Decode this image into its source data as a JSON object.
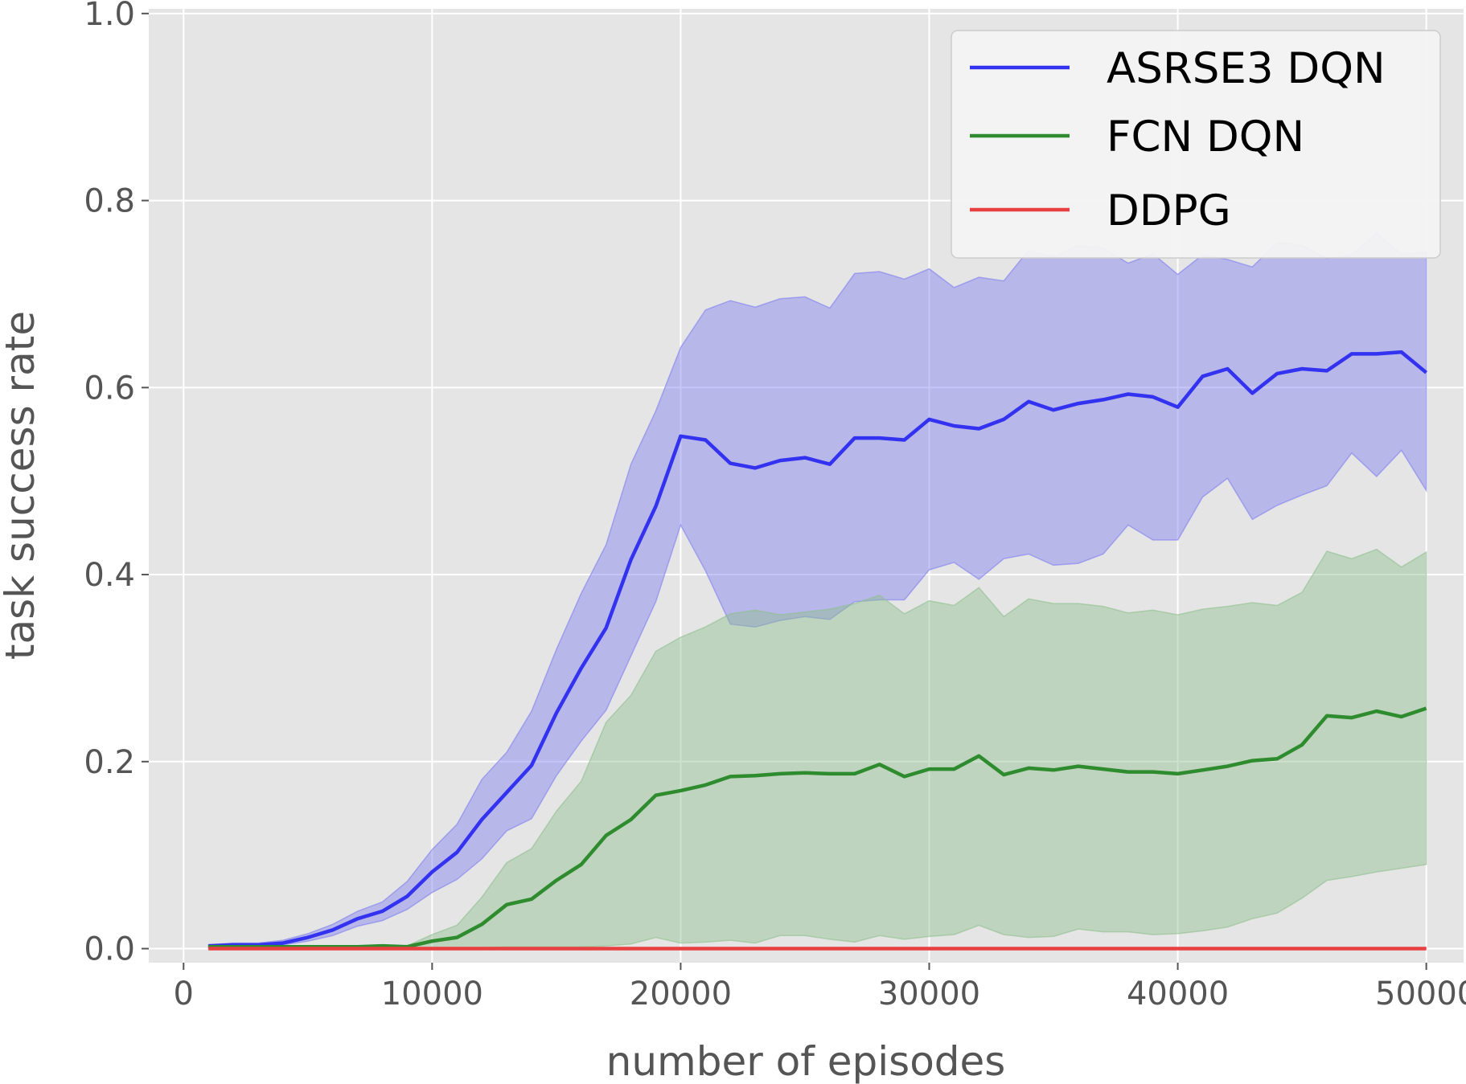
{
  "chart_data": {
    "type": "line",
    "xlabel": "number of episodes",
    "ylabel": "task success rate",
    "xlim": [
      -1400,
      51500
    ],
    "ylim": [
      -0.015,
      1.005
    ],
    "xticks": [
      0,
      10000,
      20000,
      30000,
      40000,
      50000
    ],
    "xtick_labels": [
      "0",
      "10000",
      "20000",
      "30000",
      "40000",
      "50000"
    ],
    "yticks": [
      0.0,
      0.2,
      0.4,
      0.6,
      0.8,
      1.0
    ],
    "ytick_labels": [
      "0.0",
      "0.2",
      "0.4",
      "0.6",
      "0.8",
      "1.0"
    ],
    "grid": true,
    "legend_position": "top-right",
    "x": [
      1000,
      2000,
      3000,
      4000,
      5000,
      6000,
      7000,
      8000,
      9000,
      10000,
      11000,
      12000,
      13000,
      14000,
      15000,
      16000,
      17000,
      18000,
      19000,
      20000,
      21000,
      22000,
      23000,
      24000,
      25000,
      26000,
      27000,
      28000,
      29000,
      30000,
      31000,
      32000,
      33000,
      34000,
      35000,
      36000,
      37000,
      38000,
      39000,
      40000,
      41000,
      42000,
      43000,
      44000,
      45000,
      46000,
      47000,
      48000,
      49000,
      50000
    ],
    "series": [
      {
        "name": "ASRSE3 DQN",
        "color": "#3232f0",
        "band_color": "#7f7ff0",
        "values": [
          0.003,
          0.004,
          0.004,
          0.006,
          0.012,
          0.02,
          0.032,
          0.04,
          0.056,
          0.082,
          0.103,
          0.138,
          0.167,
          0.196,
          0.252,
          0.3,
          0.343,
          0.416,
          0.473,
          0.548,
          0.544,
          0.519,
          0.514,
          0.522,
          0.525,
          0.518,
          0.546,
          0.546,
          0.544,
          0.566,
          0.559,
          0.556,
          0.566,
          0.585,
          0.576,
          0.583,
          0.587,
          0.593,
          0.59,
          0.579,
          0.612,
          0.62,
          0.594,
          0.615,
          0.62,
          0.618,
          0.636,
          0.636,
          0.638,
          0.616
        ],
        "upper": [
          0.004,
          0.006,
          0.006,
          0.009,
          0.016,
          0.026,
          0.04,
          0.05,
          0.072,
          0.106,
          0.133,
          0.181,
          0.21,
          0.254,
          0.32,
          0.38,
          0.432,
          0.518,
          0.575,
          0.643,
          0.683,
          0.693,
          0.686,
          0.695,
          0.697,
          0.685,
          0.722,
          0.724,
          0.716,
          0.727,
          0.707,
          0.718,
          0.714,
          0.747,
          0.74,
          0.752,
          0.749,
          0.733,
          0.743,
          0.721,
          0.742,
          0.737,
          0.729,
          0.755,
          0.752,
          0.738,
          0.742,
          0.765,
          0.743,
          0.745
        ],
        "lower": [
          0.002,
          0.003,
          0.003,
          0.004,
          0.008,
          0.014,
          0.024,
          0.03,
          0.042,
          0.06,
          0.074,
          0.096,
          0.126,
          0.139,
          0.185,
          0.222,
          0.255,
          0.313,
          0.371,
          0.453,
          0.404,
          0.347,
          0.344,
          0.351,
          0.355,
          0.352,
          0.371,
          0.373,
          0.373,
          0.405,
          0.413,
          0.395,
          0.417,
          0.422,
          0.41,
          0.412,
          0.422,
          0.453,
          0.437,
          0.437,
          0.483,
          0.503,
          0.459,
          0.474,
          0.485,
          0.495,
          0.53,
          0.505,
          0.533,
          0.49
        ]
      },
      {
        "name": "FCN DQN",
        "color": "#2e8b2e",
        "band_color": "#8fbf8f",
        "values": [
          0.002,
          0.002,
          0.002,
          0.002,
          0.002,
          0.002,
          0.002,
          0.003,
          0.002,
          0.008,
          0.012,
          0.026,
          0.047,
          0.053,
          0.073,
          0.09,
          0.121,
          0.138,
          0.164,
          0.169,
          0.175,
          0.184,
          0.185,
          0.187,
          0.188,
          0.187,
          0.187,
          0.197,
          0.184,
          0.192,
          0.192,
          0.206,
          0.186,
          0.193,
          0.191,
          0.195,
          0.192,
          0.189,
          0.189,
          0.187,
          0.191,
          0.195,
          0.201,
          0.203,
          0.218,
          0.249,
          0.247,
          0.254,
          0.248,
          0.257
        ],
        "upper": [
          0.003,
          0.003,
          0.003,
          0.003,
          0.003,
          0.003,
          0.003,
          0.004,
          0.003,
          0.015,
          0.025,
          0.055,
          0.092,
          0.107,
          0.147,
          0.179,
          0.242,
          0.271,
          0.318,
          0.333,
          0.344,
          0.358,
          0.362,
          0.357,
          0.36,
          0.363,
          0.369,
          0.378,
          0.358,
          0.372,
          0.367,
          0.386,
          0.355,
          0.374,
          0.369,
          0.369,
          0.366,
          0.359,
          0.362,
          0.357,
          0.363,
          0.366,
          0.37,
          0.367,
          0.381,
          0.425,
          0.417,
          0.427,
          0.408,
          0.424
        ],
        "lower": [
          0.001,
          0.001,
          0.001,
          0.001,
          0.001,
          0.001,
          0.001,
          0.001,
          0.001,
          0.001,
          0.001,
          0.001,
          0.002,
          0.002,
          0.002,
          0.002,
          0.003,
          0.005,
          0.012,
          0.006,
          0.007,
          0.009,
          0.006,
          0.014,
          0.014,
          0.01,
          0.007,
          0.014,
          0.01,
          0.013,
          0.015,
          0.025,
          0.015,
          0.012,
          0.013,
          0.021,
          0.018,
          0.018,
          0.015,
          0.016,
          0.019,
          0.023,
          0.032,
          0.038,
          0.054,
          0.073,
          0.077,
          0.082,
          0.086,
          0.09
        ]
      },
      {
        "name": "DDPG",
        "color": "#e84040",
        "band_color": "#f0a0a0",
        "values": [
          0,
          0,
          0,
          0,
          0,
          0,
          0,
          0,
          0,
          0,
          0,
          0,
          0,
          0,
          0,
          0,
          0,
          0,
          0,
          0,
          0,
          0,
          0,
          0,
          0,
          0,
          0,
          0,
          0,
          0,
          0,
          0,
          0,
          0,
          0,
          0,
          0,
          0,
          0,
          0,
          0,
          0,
          0,
          0,
          0,
          0,
          0,
          0,
          0,
          0
        ],
        "upper": [
          0.001,
          0.001,
          0.001,
          0.001,
          0.001,
          0.001,
          0.001,
          0.001,
          0.001,
          0.001,
          0.001,
          0.001,
          0.001,
          0.001,
          0.001,
          0.001,
          0.001,
          0.001,
          0.001,
          0.001,
          0.001,
          0.001,
          0.001,
          0.001,
          0.001,
          0.001,
          0.001,
          0.001,
          0.001,
          0.001,
          0.001,
          0.001,
          0.001,
          0.001,
          0.001,
          0.001,
          0.001,
          0.001,
          0.001,
          0.001,
          0.001,
          0.001,
          0.001,
          0.001,
          0.001,
          0.001,
          0.001,
          0.001,
          0.001,
          0.001
        ],
        "lower": [
          0,
          0,
          0,
          0,
          0,
          0,
          0,
          0,
          0,
          0,
          0,
          0,
          0,
          0,
          0,
          0,
          0,
          0,
          0,
          0,
          0,
          0,
          0,
          0,
          0,
          0,
          0,
          0,
          0,
          0,
          0,
          0,
          0,
          0,
          0,
          0,
          0,
          0,
          0,
          0,
          0,
          0,
          0,
          0,
          0,
          0,
          0,
          0,
          0,
          0
        ]
      }
    ]
  }
}
